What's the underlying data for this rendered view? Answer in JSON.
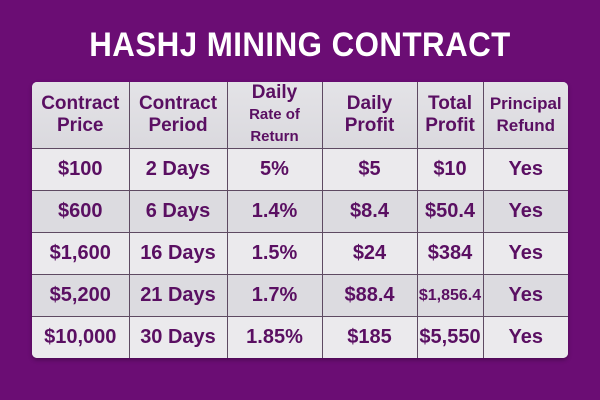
{
  "title": "HASHJ MINING CONTRACT",
  "headers": [
    {
      "line1": "Contract",
      "line2": "Price"
    },
    {
      "line1": "Contract",
      "line2": "Period"
    },
    {
      "line1": "Daily",
      "line2": "Rate of Return"
    },
    {
      "line1": "Daily",
      "line2": "Profit"
    },
    {
      "line1": "Total",
      "line2": "Profit"
    },
    {
      "line1": "Principal",
      "line2": "Refund"
    }
  ],
  "rows": [
    [
      "$100",
      "2 Days",
      "5%",
      "$5",
      "$10",
      "Yes"
    ],
    [
      "$600",
      "6 Days",
      "1.4%",
      "$8.4",
      "$50.4",
      "Yes"
    ],
    [
      "$1,600",
      "16 Days",
      "1.5%",
      "$24",
      "$384",
      "Yes"
    ],
    [
      "$5,200",
      "21 Days",
      "1.7%",
      "$88.4",
      "$1,856.4",
      "Yes"
    ],
    [
      "$10,000",
      "30 Days",
      "1.85%",
      "$185",
      "$5,550",
      "Yes"
    ]
  ]
}
